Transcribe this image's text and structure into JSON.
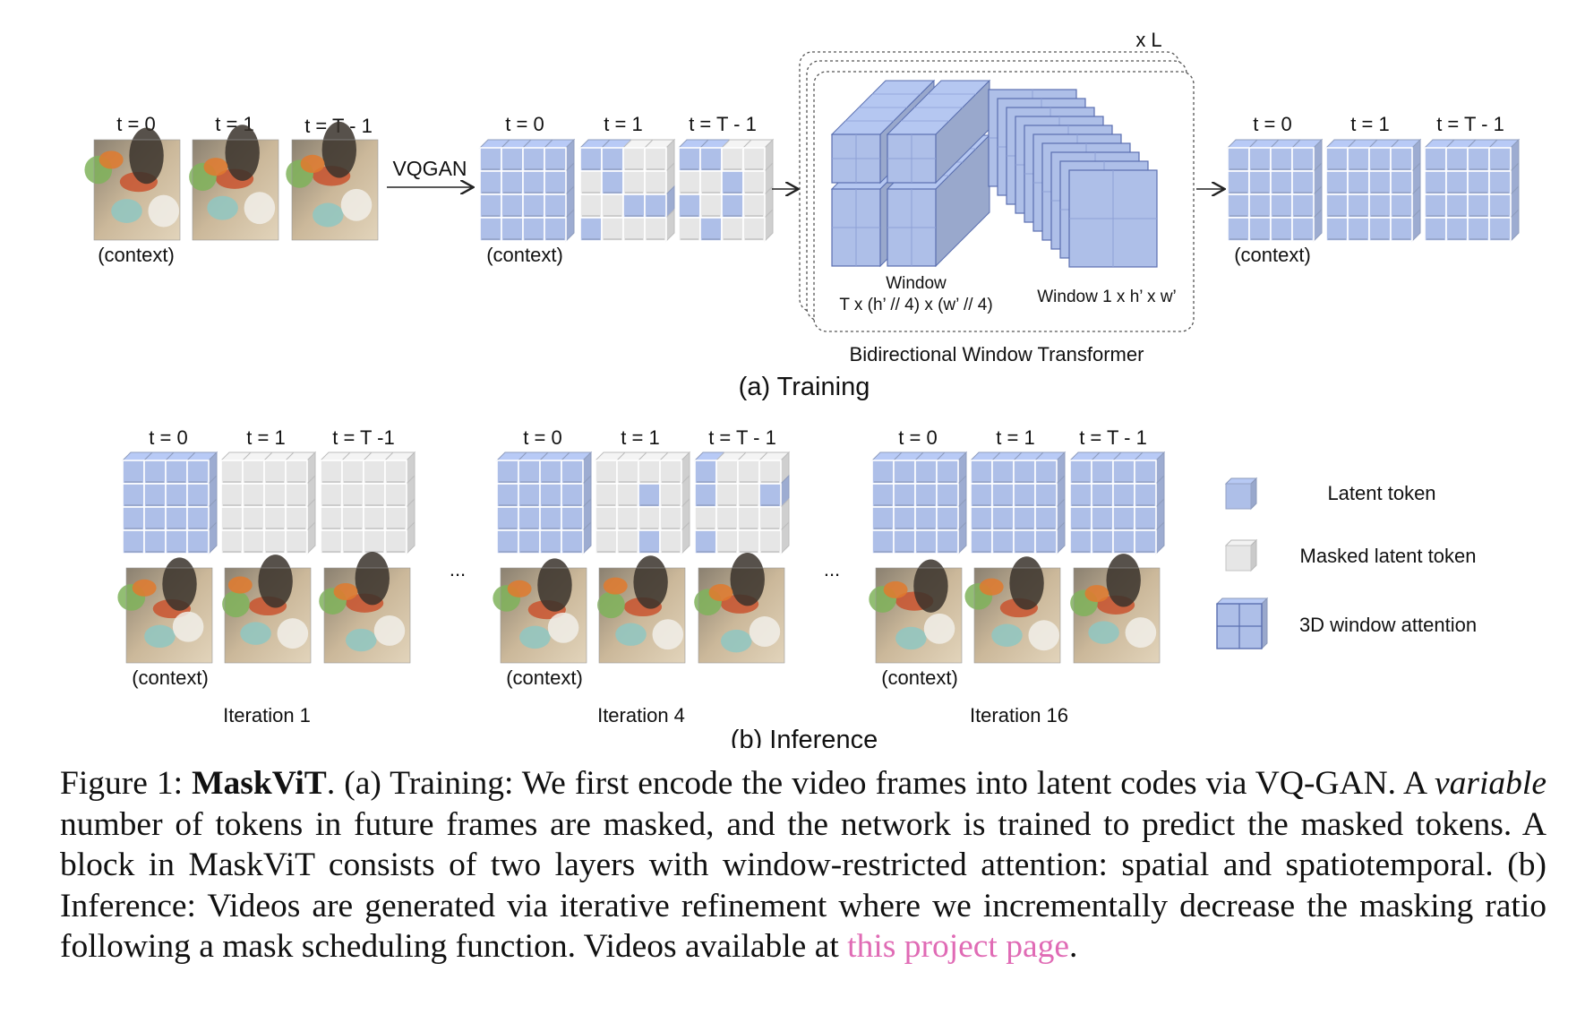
{
  "training": {
    "input_labels": [
      "t = 0",
      "t = 1",
      "t = T - 1"
    ],
    "context_label": "(context)",
    "encoder_label": "VQGAN",
    "token_labels": [
      "t = 0",
      "t = 1",
      "t = T - 1"
    ],
    "repeat_label": "x L",
    "window_a_line1": "Window",
    "window_a_line2": "T x (h’ // 4) x (w’ // 4)",
    "window_b": "Window 1 x h’ x w’",
    "transformer_label": "Bidirectional Window Transformer",
    "output_labels": [
      "t = 0",
      "t = 1",
      "t = T - 1"
    ],
    "title": "(a) Training"
  },
  "inference": {
    "iterations": [
      {
        "labels": [
          "t = 0",
          "t = 1",
          "t = T -1"
        ],
        "name": "Iteration 1"
      },
      {
        "labels": [
          "t = 0",
          "t = 1",
          "t = T - 1"
        ],
        "name": "Iteration 4"
      },
      {
        "labels": [
          "t = 0",
          "t = 1",
          "t = T - 1"
        ],
        "name": "Iteration 16"
      }
    ],
    "context_label": "(context)",
    "ellipsis": "...",
    "title": "(b) Inference"
  },
  "legend": {
    "latent": "Latent token",
    "masked": "Masked latent token",
    "window": "3D window attention"
  },
  "colors": {
    "latent_token": "#aebfe8",
    "masked_token": "#e6e6e6",
    "link": "#e06bb5"
  },
  "caption": {
    "prefix": "Figure 1: ",
    "name": "MaskViT",
    "text1": ". (a) Training: We first encode the video frames into latent codes via VQ-GAN. A ",
    "italic": "variable",
    "text2": " number of tokens in future frames are masked, and the network is trained to predict the masked tokens.  A block in MaskViT consists of two layers with window-restricted attention: spatial and spatiotemporal.  (b) Inference: Videos are generated via iterative refinement where we incrementally decrease the masking ratio following a mask scheduling function. Videos available at ",
    "link": "this project page",
    "end": "."
  }
}
